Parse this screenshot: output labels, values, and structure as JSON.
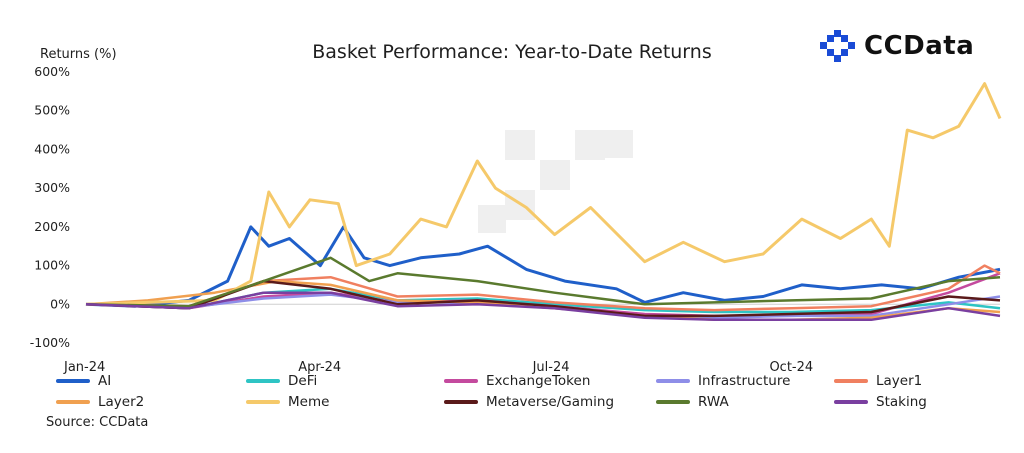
{
  "brand": {
    "logo_text": "CCData",
    "logo_icon": "ccdata-logo-icon",
    "accent": "#1a4bd6"
  },
  "source_text": "Source: CCData",
  "chart_data": {
    "type": "line",
    "title": "Basket Performance: Year-to-Date Returns",
    "ylabel": "Returns (%)",
    "xlabel": "",
    "ylim": [
      -100,
      600
    ],
    "y_ticks": [
      "-100%",
      "0%",
      "100%",
      "200%",
      "300%",
      "400%",
      "500%",
      "600%"
    ],
    "y_tick_values": [
      -100,
      0,
      100,
      200,
      300,
      400,
      500,
      600
    ],
    "x_ticks": [
      "Jan-24",
      "Apr-24",
      "Jul-24",
      "Oct-24"
    ],
    "x_tick_dates": [
      "2024-01-01",
      "2024-04-01",
      "2024-07-01",
      "2024-10-01"
    ],
    "x_range": [
      "2024-01-01",
      "2024-12-21"
    ],
    "grid": false,
    "legend_position": "bottom",
    "series": [
      {
        "name": "AI",
        "color": "#1f5fc9",
        "x": [
          "2024-01-01",
          "2024-01-20",
          "2024-02-10",
          "2024-02-25",
          "2024-03-05",
          "2024-03-12",
          "2024-03-20",
          "2024-04-01",
          "2024-04-10",
          "2024-04-18",
          "2024-04-28",
          "2024-05-10",
          "2024-05-25",
          "2024-06-05",
          "2024-06-20",
          "2024-07-05",
          "2024-07-25",
          "2024-08-05",
          "2024-08-20",
          "2024-09-05",
          "2024-09-20",
          "2024-10-05",
          "2024-10-20",
          "2024-11-05",
          "2024-11-20",
          "2024-12-05",
          "2024-12-21"
        ],
        "y": [
          0,
          -5,
          10,
          60,
          200,
          150,
          170,
          100,
          200,
          120,
          100,
          120,
          130,
          150,
          90,
          60,
          40,
          5,
          30,
          10,
          20,
          50,
          40,
          50,
          40,
          70,
          90
        ]
      },
      {
        "name": "DeFi",
        "color": "#2ec4c4",
        "x": [
          "2024-01-01",
          "2024-02-10",
          "2024-03-10",
          "2024-04-05",
          "2024-05-01",
          "2024-06-01",
          "2024-07-01",
          "2024-08-05",
          "2024-09-01",
          "2024-10-01",
          "2024-11-01",
          "2024-12-01",
          "2024-12-21"
        ],
        "y": [
          0,
          -10,
          30,
          40,
          10,
          15,
          0,
          -15,
          -20,
          -20,
          -15,
          5,
          -10
        ]
      },
      {
        "name": "ExchangeToken",
        "color": "#c44a9e",
        "x": [
          "2024-01-01",
          "2024-02-10",
          "2024-03-10",
          "2024-04-05",
          "2024-05-01",
          "2024-06-01",
          "2024-07-01",
          "2024-08-05",
          "2024-09-01",
          "2024-10-01",
          "2024-11-01",
          "2024-12-01",
          "2024-12-21"
        ],
        "y": [
          0,
          -10,
          20,
          30,
          5,
          10,
          -5,
          -25,
          -30,
          -30,
          -25,
          30,
          80
        ]
      },
      {
        "name": "Infrastructure",
        "color": "#8e8ee8",
        "x": [
          "2024-01-01",
          "2024-02-10",
          "2024-03-10",
          "2024-04-05",
          "2024-05-01",
          "2024-06-01",
          "2024-07-01",
          "2024-08-05",
          "2024-09-01",
          "2024-10-01",
          "2024-11-01",
          "2024-12-01",
          "2024-12-21"
        ],
        "y": [
          0,
          -8,
          15,
          25,
          5,
          5,
          -10,
          -30,
          -35,
          -30,
          -30,
          0,
          20
        ]
      },
      {
        "name": "Layer1",
        "color": "#f08060",
        "x": [
          "2024-01-01",
          "2024-02-10",
          "2024-03-10",
          "2024-04-05",
          "2024-05-01",
          "2024-06-01",
          "2024-07-01",
          "2024-08-05",
          "2024-09-01",
          "2024-10-01",
          "2024-11-01",
          "2024-12-01",
          "2024-12-15",
          "2024-12-21"
        ],
        "y": [
          0,
          -5,
          60,
          70,
          20,
          25,
          5,
          -10,
          -15,
          -10,
          -5,
          40,
          100,
          80
        ]
      },
      {
        "name": "Layer2",
        "color": "#f0a050",
        "x": [
          "2024-01-01",
          "2024-01-25",
          "2024-02-20",
          "2024-03-15",
          "2024-04-05",
          "2024-05-01",
          "2024-06-01",
          "2024-07-01",
          "2024-08-05",
          "2024-09-01",
          "2024-10-01",
          "2024-11-01",
          "2024-12-01",
          "2024-12-21"
        ],
        "y": [
          0,
          10,
          30,
          60,
          50,
          10,
          5,
          -10,
          -30,
          -40,
          -40,
          -35,
          -10,
          -20
        ]
      },
      {
        "name": "Meme",
        "color": "#f5c96a",
        "x": [
          "2024-01-01",
          "2024-02-20",
          "2024-03-05",
          "2024-03-12",
          "2024-03-20",
          "2024-03-28",
          "2024-04-08",
          "2024-04-15",
          "2024-04-28",
          "2024-05-10",
          "2024-05-20",
          "2024-06-01",
          "2024-06-08",
          "2024-06-20",
          "2024-07-01",
          "2024-07-15",
          "2024-08-05",
          "2024-08-20",
          "2024-09-05",
          "2024-09-20",
          "2024-10-05",
          "2024-10-20",
          "2024-11-01",
          "2024-11-08",
          "2024-11-15",
          "2024-11-25",
          "2024-12-05",
          "2024-12-15",
          "2024-12-21"
        ],
        "y": [
          0,
          10,
          60,
          290,
          200,
          270,
          260,
          100,
          130,
          220,
          200,
          370,
          300,
          250,
          180,
          250,
          110,
          160,
          110,
          130,
          220,
          170,
          220,
          150,
          450,
          430,
          460,
          570,
          480
        ]
      },
      {
        "name": "Metaverse/Gaming",
        "color": "#5a1a1a",
        "x": [
          "2024-01-01",
          "2024-02-10",
          "2024-03-10",
          "2024-04-05",
          "2024-05-01",
          "2024-06-01",
          "2024-07-01",
          "2024-08-05",
          "2024-09-01",
          "2024-10-01",
          "2024-11-01",
          "2024-12-01",
          "2024-12-21"
        ],
        "y": [
          0,
          -10,
          60,
          40,
          0,
          10,
          -5,
          -30,
          -30,
          -25,
          -20,
          20,
          10
        ]
      },
      {
        "name": "RWA",
        "color": "#5a7a2e",
        "x": [
          "2024-01-01",
          "2024-02-10",
          "2024-03-10",
          "2024-04-05",
          "2024-04-20",
          "2024-05-01",
          "2024-06-01",
          "2024-07-01",
          "2024-08-05",
          "2024-09-01",
          "2024-10-01",
          "2024-11-01",
          "2024-12-01",
          "2024-12-21"
        ],
        "y": [
          0,
          -5,
          60,
          120,
          60,
          80,
          60,
          30,
          0,
          5,
          10,
          15,
          60,
          70
        ]
      },
      {
        "name": "Staking",
        "color": "#7a3fa0",
        "x": [
          "2024-01-01",
          "2024-02-10",
          "2024-03-10",
          "2024-04-05",
          "2024-05-01",
          "2024-06-01",
          "2024-07-01",
          "2024-08-05",
          "2024-09-01",
          "2024-10-01",
          "2024-11-01",
          "2024-12-01",
          "2024-12-21"
        ],
        "y": [
          0,
          -10,
          30,
          30,
          -5,
          0,
          -10,
          -35,
          -40,
          -40,
          -40,
          -10,
          -30
        ]
      }
    ]
  }
}
